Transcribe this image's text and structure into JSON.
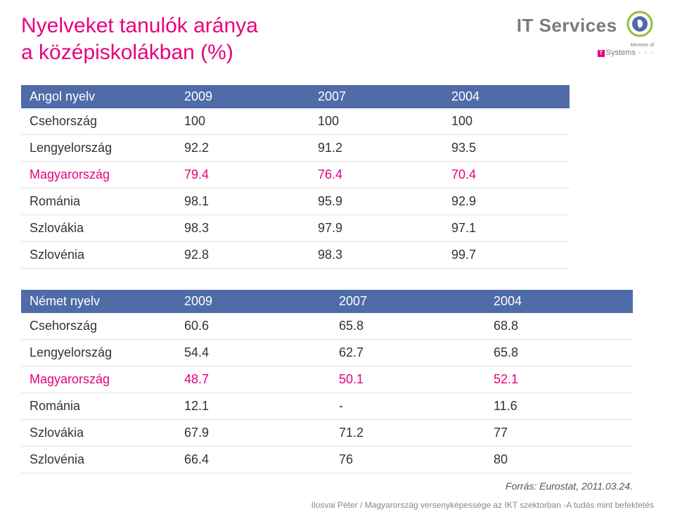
{
  "title_line1": "Nyelveket tanulók aránya",
  "title_line2": "a középiskolákban (%)",
  "brand": {
    "it_services": "IT Services",
    "member_of": "Member of",
    "t_systems": "Systems"
  },
  "table1": {
    "header": [
      "Angol nyelv",
      "2009",
      "2007",
      "2004"
    ],
    "rows": [
      {
        "cells": [
          "Csehország",
          "100",
          "100",
          "100"
        ],
        "highlight": false
      },
      {
        "cells": [
          "Lengyelország",
          "92.2",
          "91.2",
          "93.5"
        ],
        "highlight": false
      },
      {
        "cells": [
          "Magyarország",
          "79.4",
          "76.4",
          "70.4"
        ],
        "highlight": true
      },
      {
        "cells": [
          "Románia",
          "98.1",
          "95.9",
          "92.9"
        ],
        "highlight": false
      },
      {
        "cells": [
          "Szlovákia",
          "98.3",
          "97.9",
          "97.1"
        ],
        "highlight": false
      },
      {
        "cells": [
          "Szlovénia",
          "92.8",
          "98.3",
          "99.7"
        ],
        "highlight": false
      }
    ]
  },
  "table2": {
    "header": [
      "Német nyelv",
      "2009",
      "2007",
      "2004"
    ],
    "rows": [
      {
        "cells": [
          "Csehország",
          "60.6",
          "65.8",
          "68.8"
        ],
        "highlight": false
      },
      {
        "cells": [
          "Lengyelország",
          "54.4",
          "62.7",
          "65.8"
        ],
        "highlight": false
      },
      {
        "cells": [
          "Magyarország",
          "48.7",
          "50.1",
          "52.1"
        ],
        "highlight": true
      },
      {
        "cells": [
          "Románia",
          "12.1",
          "-",
          "11.6"
        ],
        "highlight": false
      },
      {
        "cells": [
          "Szlovákia",
          "67.9",
          "71.2",
          "77"
        ],
        "highlight": false
      },
      {
        "cells": [
          "Szlovénia",
          "66.4",
          "76",
          "80"
        ],
        "highlight": false
      }
    ]
  },
  "source": "Forrás: Eurostat, 2011.03.24.",
  "footer": "Ilosvai Péter / Magyarország versenyképessége az IKT szektorban -A tudás mint befektetés",
  "colors": {
    "magenta": "#e6007e",
    "header_bg": "#4f6ba8",
    "header_text": "#ffffff",
    "body_text": "#333333",
    "row_border": "#e2e2e2",
    "grey_text": "#7a7a7a"
  }
}
